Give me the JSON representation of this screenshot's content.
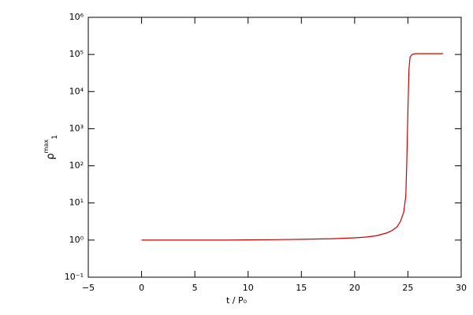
{
  "chart_data": {
    "type": "line",
    "xlabel": "t / P₀",
    "ylabel": "ρ",
    "ylabel_sup": "max",
    "ylabel_sub": "1",
    "log_y": true,
    "xlim": [
      -5,
      30
    ],
    "xticks": [
      {
        "value": -5,
        "label": "−5"
      },
      0,
      5,
      10,
      15,
      20,
      25,
      30
    ],
    "ylim": [
      0.1,
      1000000
    ],
    "yticks": [
      {
        "value": 0.1,
        "label": "10⁻¹"
      },
      {
        "value": 1,
        "label": "10⁰"
      },
      {
        "value": 10,
        "label": "10¹"
      },
      {
        "value": 100,
        "label": "10²"
      },
      {
        "value": 1000,
        "label": "10³"
      },
      {
        "value": 10000,
        "label": "10⁴"
      },
      {
        "value": 100000,
        "label": "10⁵"
      },
      {
        "value": 1000000,
        "label": "10⁶"
      }
    ],
    "series": [
      {
        "color": "#cc0000",
        "x": [
          0,
          2,
          4,
          6,
          8,
          10,
          12,
          14,
          16,
          18,
          20,
          21,
          22,
          23,
          23.5,
          24,
          24.3,
          24.6,
          24.8,
          24.9,
          25.0,
          25.1,
          25.2,
          25.4,
          25.7,
          26.5,
          28.3
        ],
        "values": [
          1,
          1,
          1,
          1,
          1,
          1.01,
          1.02,
          1.04,
          1.06,
          1.09,
          1.15,
          1.2,
          1.3,
          1.55,
          1.8,
          2.3,
          3.2,
          5.5,
          15,
          150,
          3000,
          40000,
          85000,
          100000,
          105000,
          105000,
          105000
        ]
      }
    ]
  }
}
